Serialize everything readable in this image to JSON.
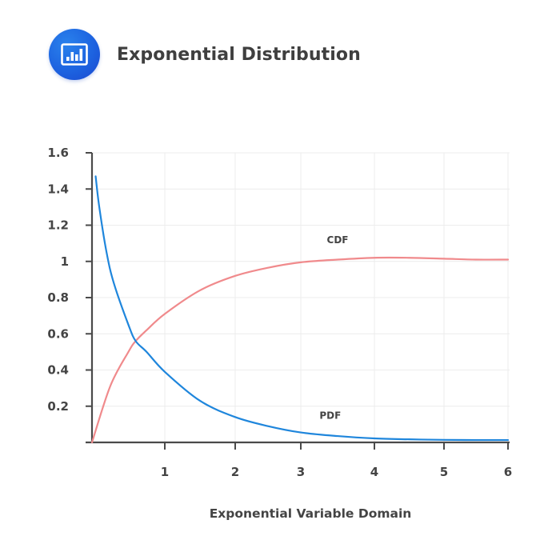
{
  "header": {
    "title": "Exponential Distribution",
    "icon": "bar-chart-icon",
    "icon_color": "#1d63e0"
  },
  "chart_data": {
    "type": "line",
    "title": "Exponential Distribution",
    "xlabel": "Exponential Variable Domain",
    "ylabel": "",
    "xlim": [
      0,
      6
    ],
    "ylim": [
      0,
      1.6
    ],
    "x_ticks": [
      "1",
      "2",
      "3",
      "4",
      "5",
      "6"
    ],
    "y_ticks": [
      "0.2",
      "0.4",
      "0.6",
      "0.8",
      "1",
      "1.2",
      "1.4",
      "1.6"
    ],
    "grid": true,
    "legend": "inline labels",
    "series": [
      {
        "name": "CDF",
        "color": "#f08a8c",
        "x": [
          0,
          0.25,
          0.5,
          0.6,
          0.75,
          1,
          1.5,
          2,
          2.5,
          3,
          3.5,
          4,
          4.5,
          5,
          5.5,
          6
        ],
        "values": [
          0,
          0.31,
          0.5,
          0.56,
          0.62,
          0.71,
          0.84,
          0.92,
          0.965,
          0.995,
          1.01,
          1.02,
          1.02,
          1.015,
          1.01,
          1.01
        ]
      },
      {
        "name": "PDF",
        "color": "#1f86dc",
        "x": [
          0.05,
          0.1,
          0.2,
          0.3,
          0.5,
          0.6,
          0.75,
          1,
          1.5,
          2,
          2.5,
          3,
          3.5,
          4,
          4.5,
          5,
          5.5,
          6
        ],
        "values": [
          1.47,
          1.3,
          1.05,
          0.88,
          0.65,
          0.56,
          0.5,
          0.39,
          0.23,
          0.14,
          0.09,
          0.055,
          0.035,
          0.022,
          0.017,
          0.014,
          0.013,
          0.013
        ]
      }
    ],
    "annotations": [
      {
        "text": "CDF",
        "x": 3.5,
        "y": 1.1
      },
      {
        "text": "PDF",
        "x": 3.4,
        "y": 0.13
      }
    ]
  }
}
